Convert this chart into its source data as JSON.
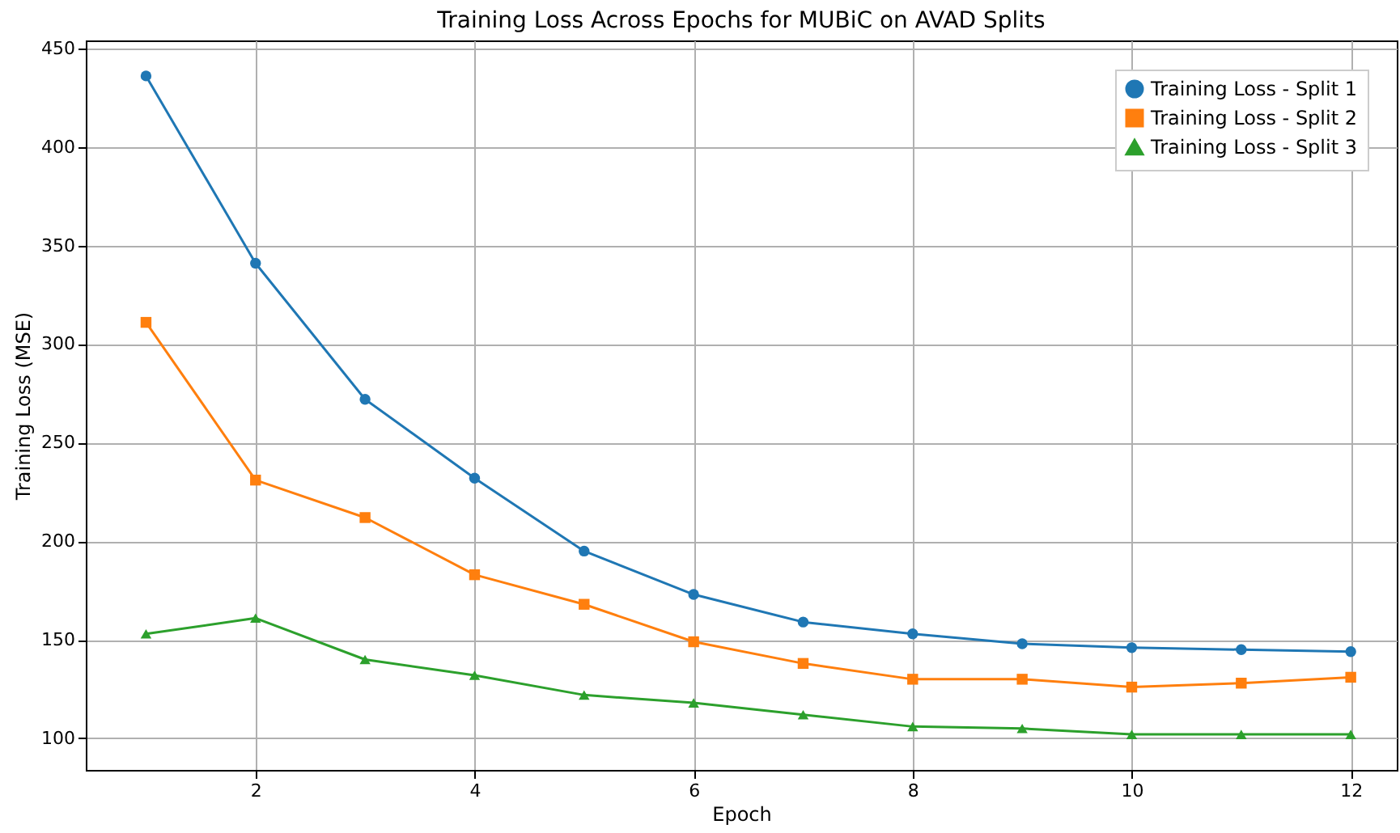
{
  "chart_data": {
    "type": "line",
    "title": "Training Loss Across Epochs for MUBiC on AVAD Splits",
    "xlabel": "Epoch",
    "ylabel": "Training Loss (MSE)",
    "x": [
      1,
      2,
      3,
      4,
      5,
      6,
      7,
      8,
      9,
      10,
      11,
      12
    ],
    "series": [
      {
        "name": "Training Loss - Split 1",
        "color": "#1f77b4",
        "marker": "circle",
        "values": [
          436,
          341,
          272,
          232,
          195,
          173,
          159,
          153,
          148,
          146,
          145,
          144
        ]
      },
      {
        "name": "Training Loss - Split 2",
        "color": "#ff7f0e",
        "marker": "square",
        "values": [
          311,
          231,
          212,
          183,
          168,
          149,
          138,
          130,
          130,
          126,
          128,
          131
        ]
      },
      {
        "name": "Training Loss - Split 3",
        "color": "#2ca02c",
        "marker": "triangle",
        "values": [
          153,
          161,
          140,
          132,
          122,
          118,
          112,
          106,
          105,
          102,
          102,
          102
        ]
      }
    ],
    "xlim": [
      0.45,
      12.42
    ],
    "xticks": [
      2,
      4,
      6,
      8,
      10,
      12
    ],
    "ylim": [
      84,
      454
    ],
    "yticks": [
      100,
      150,
      200,
      250,
      300,
      350,
      400,
      450
    ],
    "grid": true,
    "legend": "top right",
    "line_style": "solid"
  }
}
